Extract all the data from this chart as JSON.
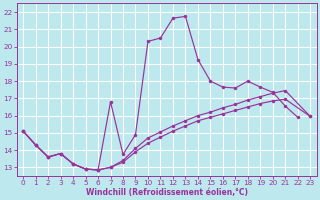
{
  "xlabel": "Windchill (Refroidissement éolien,°C)",
  "bg_color": "#bde8ee",
  "grid_color": "#ffffff",
  "line_color": "#993399",
  "xlim": [
    -0.5,
    23.5
  ],
  "ylim": [
    12.5,
    22.5
  ],
  "xticks": [
    0,
    1,
    2,
    3,
    4,
    5,
    6,
    7,
    8,
    9,
    10,
    11,
    12,
    13,
    14,
    15,
    16,
    17,
    18,
    19,
    20,
    21,
    22,
    23
  ],
  "yticks": [
    13,
    14,
    15,
    16,
    17,
    18,
    19,
    20,
    21,
    22
  ],
  "curve1_x": [
    0,
    1,
    2,
    3,
    4,
    5,
    6,
    7,
    8,
    9,
    10,
    11,
    12,
    13,
    14,
    15,
    16,
    17,
    18,
    19,
    20,
    21,
    22
  ],
  "curve1_y": [
    15.1,
    14.3,
    13.6,
    13.8,
    13.2,
    12.9,
    12.85,
    16.8,
    13.75,
    14.9,
    20.3,
    20.5,
    21.65,
    21.75,
    19.25,
    18.0,
    17.65,
    17.6,
    18.0,
    17.65,
    17.35,
    16.55,
    15.9
  ],
  "curve2_x": [
    0,
    1,
    2,
    3,
    4,
    5,
    6,
    7,
    8,
    9,
    10,
    11,
    12,
    13,
    14,
    15,
    16,
    17,
    18,
    19,
    20,
    21,
    23
  ],
  "curve2_y": [
    15.1,
    14.3,
    13.6,
    13.8,
    13.2,
    12.9,
    12.85,
    13.0,
    13.4,
    14.1,
    14.7,
    15.05,
    15.4,
    15.7,
    16.0,
    16.2,
    16.45,
    16.65,
    16.9,
    17.1,
    17.3,
    17.45,
    15.95
  ],
  "curve3_x": [
    0,
    1,
    2,
    3,
    4,
    5,
    6,
    7,
    8,
    9,
    10,
    11,
    12,
    13,
    14,
    15,
    16,
    17,
    18,
    19,
    20,
    21,
    23
  ],
  "curve3_y": [
    15.1,
    14.3,
    13.6,
    13.8,
    13.2,
    12.9,
    12.85,
    13.0,
    13.3,
    13.9,
    14.4,
    14.75,
    15.1,
    15.4,
    15.7,
    15.9,
    16.1,
    16.3,
    16.5,
    16.7,
    16.85,
    16.95,
    15.95
  ]
}
